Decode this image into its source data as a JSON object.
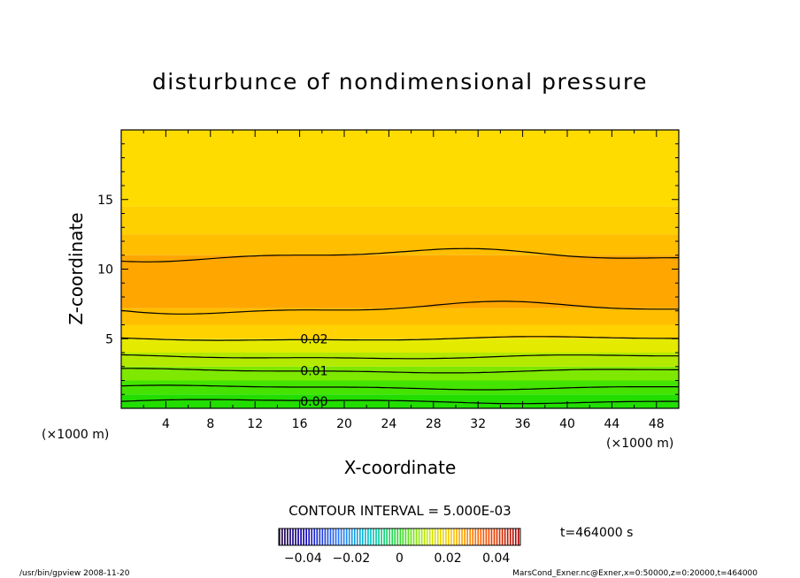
{
  "chart_data": {
    "type": "heatmap",
    "title": "disturbunce of nondimensional pressure",
    "xlabel": "X-coordinate",
    "ylabel": "Z-coordinate",
    "x_unit_left": "(×1000 m)",
    "x_unit_right": "(×1000 m)",
    "xlim": [
      0,
      50
    ],
    "ylim": [
      0,
      20
    ],
    "xticks": [
      4,
      8,
      12,
      16,
      20,
      24,
      28,
      32,
      36,
      40,
      44,
      48
    ],
    "yticks": [
      5,
      10,
      15
    ],
    "contour_interval_text": "CONTOUR INTERVAL = 5.000E-03",
    "contour_levels": [
      0.0,
      0.005,
      0.01,
      0.015,
      0.02,
      0.025,
      0.03
    ],
    "contour_labels": [
      {
        "text": "0.00",
        "x": 17.3,
        "y": 0.5
      },
      {
        "text": "0.01",
        "x": 17.3,
        "y": 2.7
      },
      {
        "text": "0.02",
        "x": 17.3,
        "y": 5.0
      }
    ],
    "fill_bands": [
      {
        "from": 0.0,
        "to": 1.0,
        "color": "#22dd00"
      },
      {
        "from": 1.0,
        "to": 2.0,
        "color": "#44e400"
      },
      {
        "from": 2.0,
        "to": 3.0,
        "color": "#7ee800"
      },
      {
        "from": 3.0,
        "to": 4.0,
        "color": "#b4ea00"
      },
      {
        "from": 4.0,
        "to": 5.0,
        "color": "#e4ea00"
      },
      {
        "from": 5.0,
        "to": 6.0,
        "color": "#ffd200"
      },
      {
        "from": 6.0,
        "to": 7.2,
        "color": "#ffbe00"
      },
      {
        "from": 7.2,
        "to": 11.0,
        "color": "#ffa600"
      },
      {
        "from": 11.0,
        "to": 12.5,
        "color": "#ffbe00"
      },
      {
        "from": 12.5,
        "to": 14.5,
        "color": "#ffd000"
      },
      {
        "from": 14.5,
        "to": 20.0,
        "color": "#ffdc00"
      }
    ],
    "colorbar_ticks": [
      "−0.04",
      "−0.02",
      "0",
      "0.02",
      "0.04"
    ],
    "colorbar_range": [
      -0.05,
      0.05
    ],
    "time_label": "t=464000 s"
  },
  "footer": {
    "left": "/usr/bin/gpview  2008-11-20",
    "right": "MarsCond_Exner.nc@Exner,x=0:50000,z=0:20000,t=464000"
  }
}
